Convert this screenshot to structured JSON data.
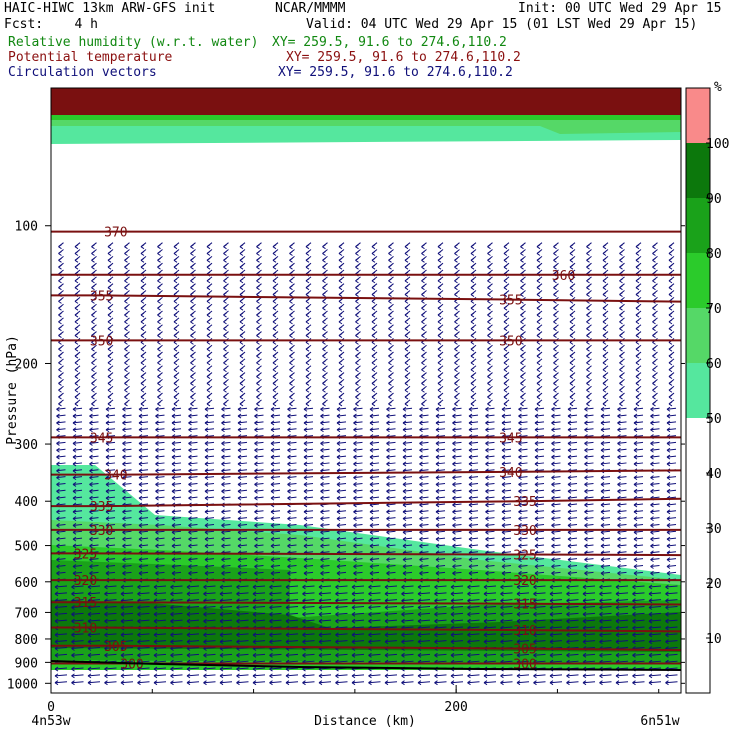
{
  "header": {
    "model": "HAIC-HIWC 13km ARW-GFS init",
    "org": "NCAR/MMMM",
    "init": "Init: 00 UTC Wed 29 Apr 15",
    "fcst": "Fcst:    4 h",
    "valid": "Valid: 04 UTC Wed 29 Apr 15 (01 LST Wed 29 Apr 15)",
    "fields": [
      {
        "name": "Relative humidity (w.r.t. water)",
        "xy": "XY= 259.5, 91.6 to 274.6,110.2",
        "color": "#118811"
      },
      {
        "name": "Potential temperature",
        "xy": "XY= 259.5, 91.6 to 274.6,110.2",
        "color": "#8b1010"
      },
      {
        "name": "Circulation vectors",
        "xy": "XY= 259.5, 91.6 to 274.6,110.2",
        "color": "#10107a"
      }
    ]
  },
  "chart_data": {
    "type": "cross-section",
    "ylabel": "Pressure (hPa)",
    "xlabel": "Distance (km)",
    "y_ticks": [
      100,
      200,
      300,
      400,
      500,
      600,
      700,
      800,
      900,
      1000
    ],
    "x_ticks": [
      0,
      200
    ],
    "xlim": [
      0,
      311
    ],
    "ylim": [
      1050,
      50
    ],
    "y_scale": "log",
    "start_label": "4n53w",
    "end_label": "6n51w",
    "colorbar": {
      "unit": "%",
      "levels": [
        10,
        20,
        30,
        40,
        50,
        60,
        70,
        80,
        90,
        100
      ],
      "colors": [
        {
          "from": 50,
          "to": 60,
          "color": "#55e79e"
        },
        {
          "from": 60,
          "to": 70,
          "color": "#55d867"
        },
        {
          "from": 70,
          "to": 80,
          "color": "#2bcb2b"
        },
        {
          "from": 80,
          "to": 90,
          "color": "#1aa21a"
        },
        {
          "from": 90,
          "to": 100,
          "color": "#0c780c"
        },
        {
          "from": 100,
          "to": 110,
          "color": "#f98a8a"
        }
      ]
    },
    "theta_contours": [
      {
        "value": 300,
        "labels": [
          {
            "x": 40,
            "p": 905
          },
          {
            "x": 234,
            "p": 905
          }
        ]
      },
      {
        "value": 305,
        "labels": [
          {
            "x": 32,
            "p": 828
          },
          {
            "x": 234,
            "p": 840
          }
        ]
      },
      {
        "value": 310,
        "labels": [
          {
            "x": 17,
            "p": 755
          },
          {
            "x": 234,
            "p": 765
          }
        ]
      },
      {
        "value": 315,
        "labels": [
          {
            "x": 17,
            "p": 665
          },
          {
            "x": 234,
            "p": 670
          }
        ]
      },
      {
        "value": 320,
        "labels": [
          {
            "x": 17,
            "p": 595
          },
          {
            "x": 234,
            "p": 595
          }
        ]
      },
      {
        "value": 325,
        "labels": [
          {
            "x": 17,
            "p": 520
          },
          {
            "x": 234,
            "p": 523
          }
        ]
      },
      {
        "value": 330,
        "labels": [
          {
            "x": 25,
            "p": 462
          },
          {
            "x": 234,
            "p": 462
          }
        ]
      },
      {
        "value": 335,
        "labels": [
          {
            "x": 25,
            "p": 410
          },
          {
            "x": 234,
            "p": 400
          }
        ]
      },
      {
        "value": 340,
        "labels": [
          {
            "x": 32,
            "p": 350
          },
          {
            "x": 227,
            "p": 345
          }
        ]
      },
      {
        "value": 345,
        "labels": [
          {
            "x": 25,
            "p": 290
          },
          {
            "x": 227,
            "p": 290
          }
        ]
      },
      {
        "value": 350,
        "labels": [
          {
            "x": 25,
            "p": 178
          },
          {
            "x": 227,
            "p": 178
          }
        ]
      },
      {
        "value": 355,
        "labels": [
          {
            "x": 25,
            "p": 142
          },
          {
            "x": 227,
            "p": 145
          }
        ]
      },
      {
        "value": 360,
        "labels": [
          {
            "x": 253,
            "p": 128
          }
        ]
      },
      {
        "value": 370,
        "labels": [
          {
            "x": 32,
            "p": 103
          }
        ]
      }
    ]
  }
}
